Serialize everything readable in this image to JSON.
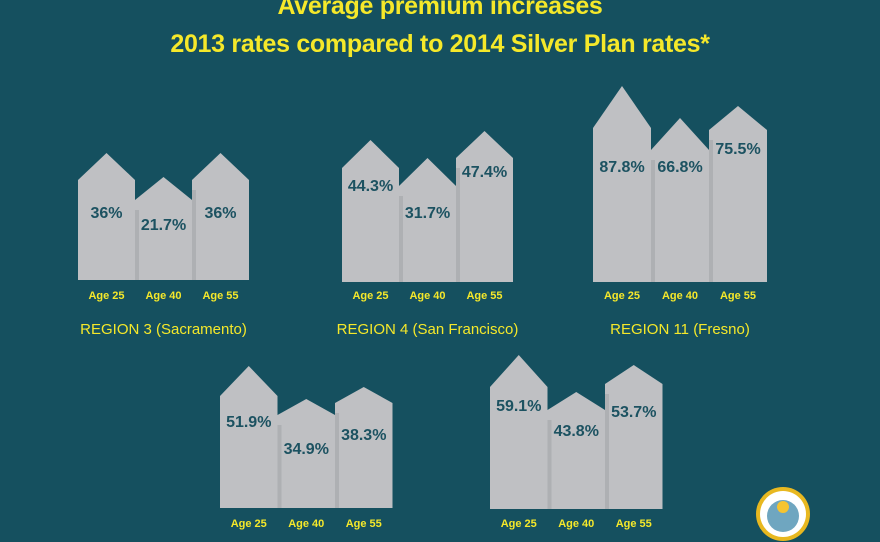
{
  "chart_data": {
    "type": "bar",
    "title": "Average premium increases",
    "subtitle": "2013 rates compared to 2014 Silver Plan rates*",
    "categories": [
      "Age 25",
      "Age 40",
      "Age 55"
    ],
    "unit": "%",
    "groups": [
      {
        "label": "REGION 3 (Sacramento)",
        "values": [
          36,
          21.7,
          36
        ],
        "value_labels": [
          "36%",
          "21.7%",
          "36%"
        ]
      },
      {
        "label": "REGION 4 (San Francisco)",
        "values": [
          44.3,
          31.7,
          47.4
        ],
        "value_labels": [
          "44.3%",
          "31.7%",
          "47.4%"
        ]
      },
      {
        "label": "REGION 11 (Fresno)",
        "values": [
          87.8,
          66.8,
          75.5
        ],
        "value_labels": [
          "87.8%",
          "66.8%",
          "75.5%"
        ]
      },
      {
        "label": "",
        "values": [
          51.9,
          34.9,
          38.3
        ],
        "value_labels": [
          "51.9%",
          "34.9%",
          "38.3%"
        ]
      },
      {
        "label": "",
        "values": [
          59.1,
          43.8,
          53.7
        ],
        "value_labels": [
          "59.1%",
          "43.8%",
          "53.7%"
        ]
      }
    ],
    "grid": false,
    "legend": "none"
  },
  "seal": {
    "text": "STATE OF CALIFORNIA"
  },
  "colors": {
    "background": "#15505f",
    "bar": "#bfc0c3",
    "title": "#f5e82a",
    "value_text": "#1c5261"
  }
}
